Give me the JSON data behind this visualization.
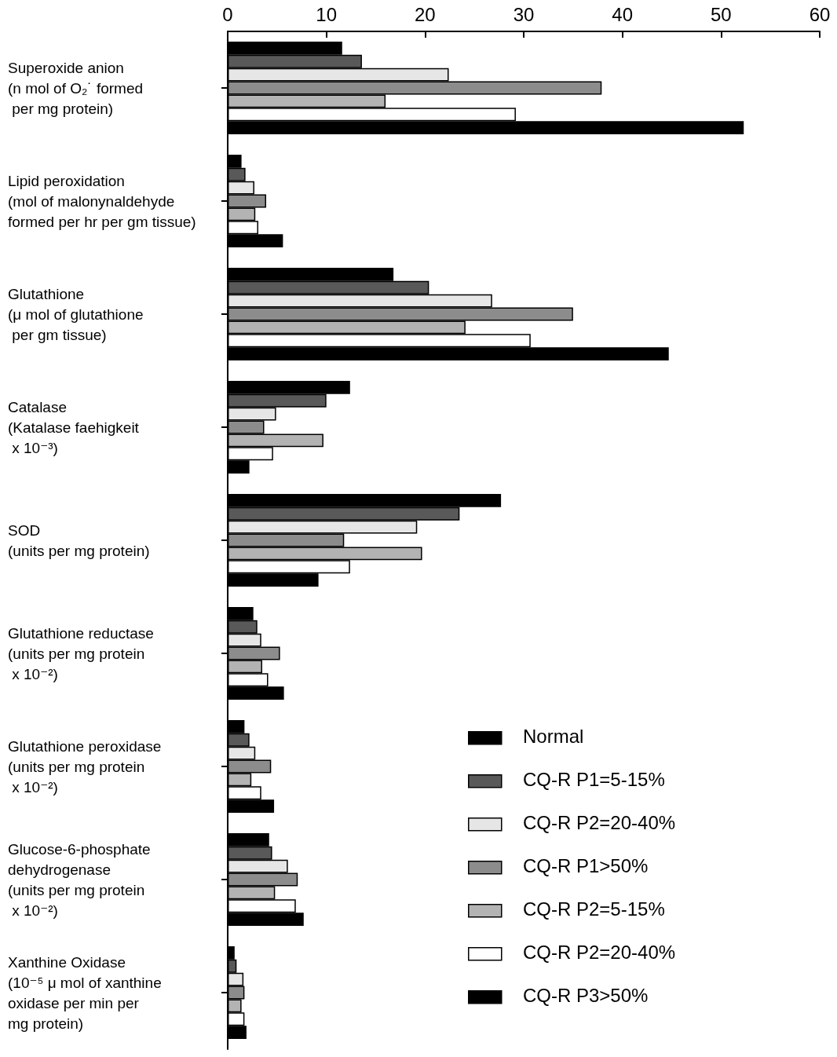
{
  "chart_data": {
    "type": "bar",
    "orientation": "horizontal",
    "legend": "bottom right",
    "categories": [
      "Superoxide anion\n(n mol of O₂˙ formed\n per mg protein)",
      "Lipid peroxidation\n(mol of malonynaldehyde\nformed per hr per gm tissue)",
      "Glutathione\n(μ mol of glutathione\n per gm tissue)",
      "Catalase\n(Katalase faehigkeit\n x 10⁻³)",
      "SOD\n(units per mg protein)",
      "Glutathione reductase\n(units per mg protein\n x 10⁻²)",
      "Glutathione peroxidase\n(units per mg protein\n x 10⁻²)",
      "Glucose-6-phosphate\ndehydrogenase\n(units per mg protein\n x 10⁻²)",
      "Xanthine Oxidase\n(10⁻⁵ μ mol of xanthine\noxidase per min per\nmg protein)"
    ],
    "xlim": [
      0,
      60
    ],
    "xticks": [
      0,
      10,
      20,
      30,
      40,
      50,
      60
    ],
    "series": [
      {
        "name": "Normal",
        "color": "#000000",
        "values": [
          11.6,
          1.4,
          16.8,
          12.4,
          27.7,
          2.6,
          1.7,
          4.2,
          0.7
        ]
      },
      {
        "name": "CQ-R P1=5-15%",
        "color": "#595959",
        "values": [
          13.6,
          1.8,
          20.4,
          10.0,
          23.5,
          3.0,
          2.2,
          4.5,
          0.9
        ]
      },
      {
        "name": "CQ-R P2=20-40%",
        "color": "#e6e6e6",
        "values": [
          22.4,
          2.7,
          26.8,
          4.9,
          19.2,
          3.4,
          2.8,
          6.1,
          1.6
        ]
      },
      {
        "name": "CQ-R P1>50%",
        "color": "#8c8c8c",
        "values": [
          37.9,
          3.9,
          35.0,
          3.7,
          11.8,
          5.3,
          4.4,
          7.1,
          1.7
        ]
      },
      {
        "name": "CQ-R P2=5-15%",
        "color": "#b3b3b3",
        "values": [
          16.0,
          2.8,
          24.1,
          9.7,
          19.7,
          3.5,
          2.4,
          4.8,
          1.4
        ]
      },
      {
        "name": "CQ-R P2=20-40%",
        "color": "#ffffff",
        "values": [
          29.2,
          3.1,
          30.7,
          4.6,
          12.4,
          4.1,
          3.4,
          6.9,
          1.7
        ]
      },
      {
        "name": "CQ-R P3>50%",
        "color": "#000000",
        "values": [
          52.3,
          5.6,
          44.7,
          2.2,
          9.2,
          5.7,
          4.7,
          7.7,
          1.9
        ]
      }
    ]
  }
}
